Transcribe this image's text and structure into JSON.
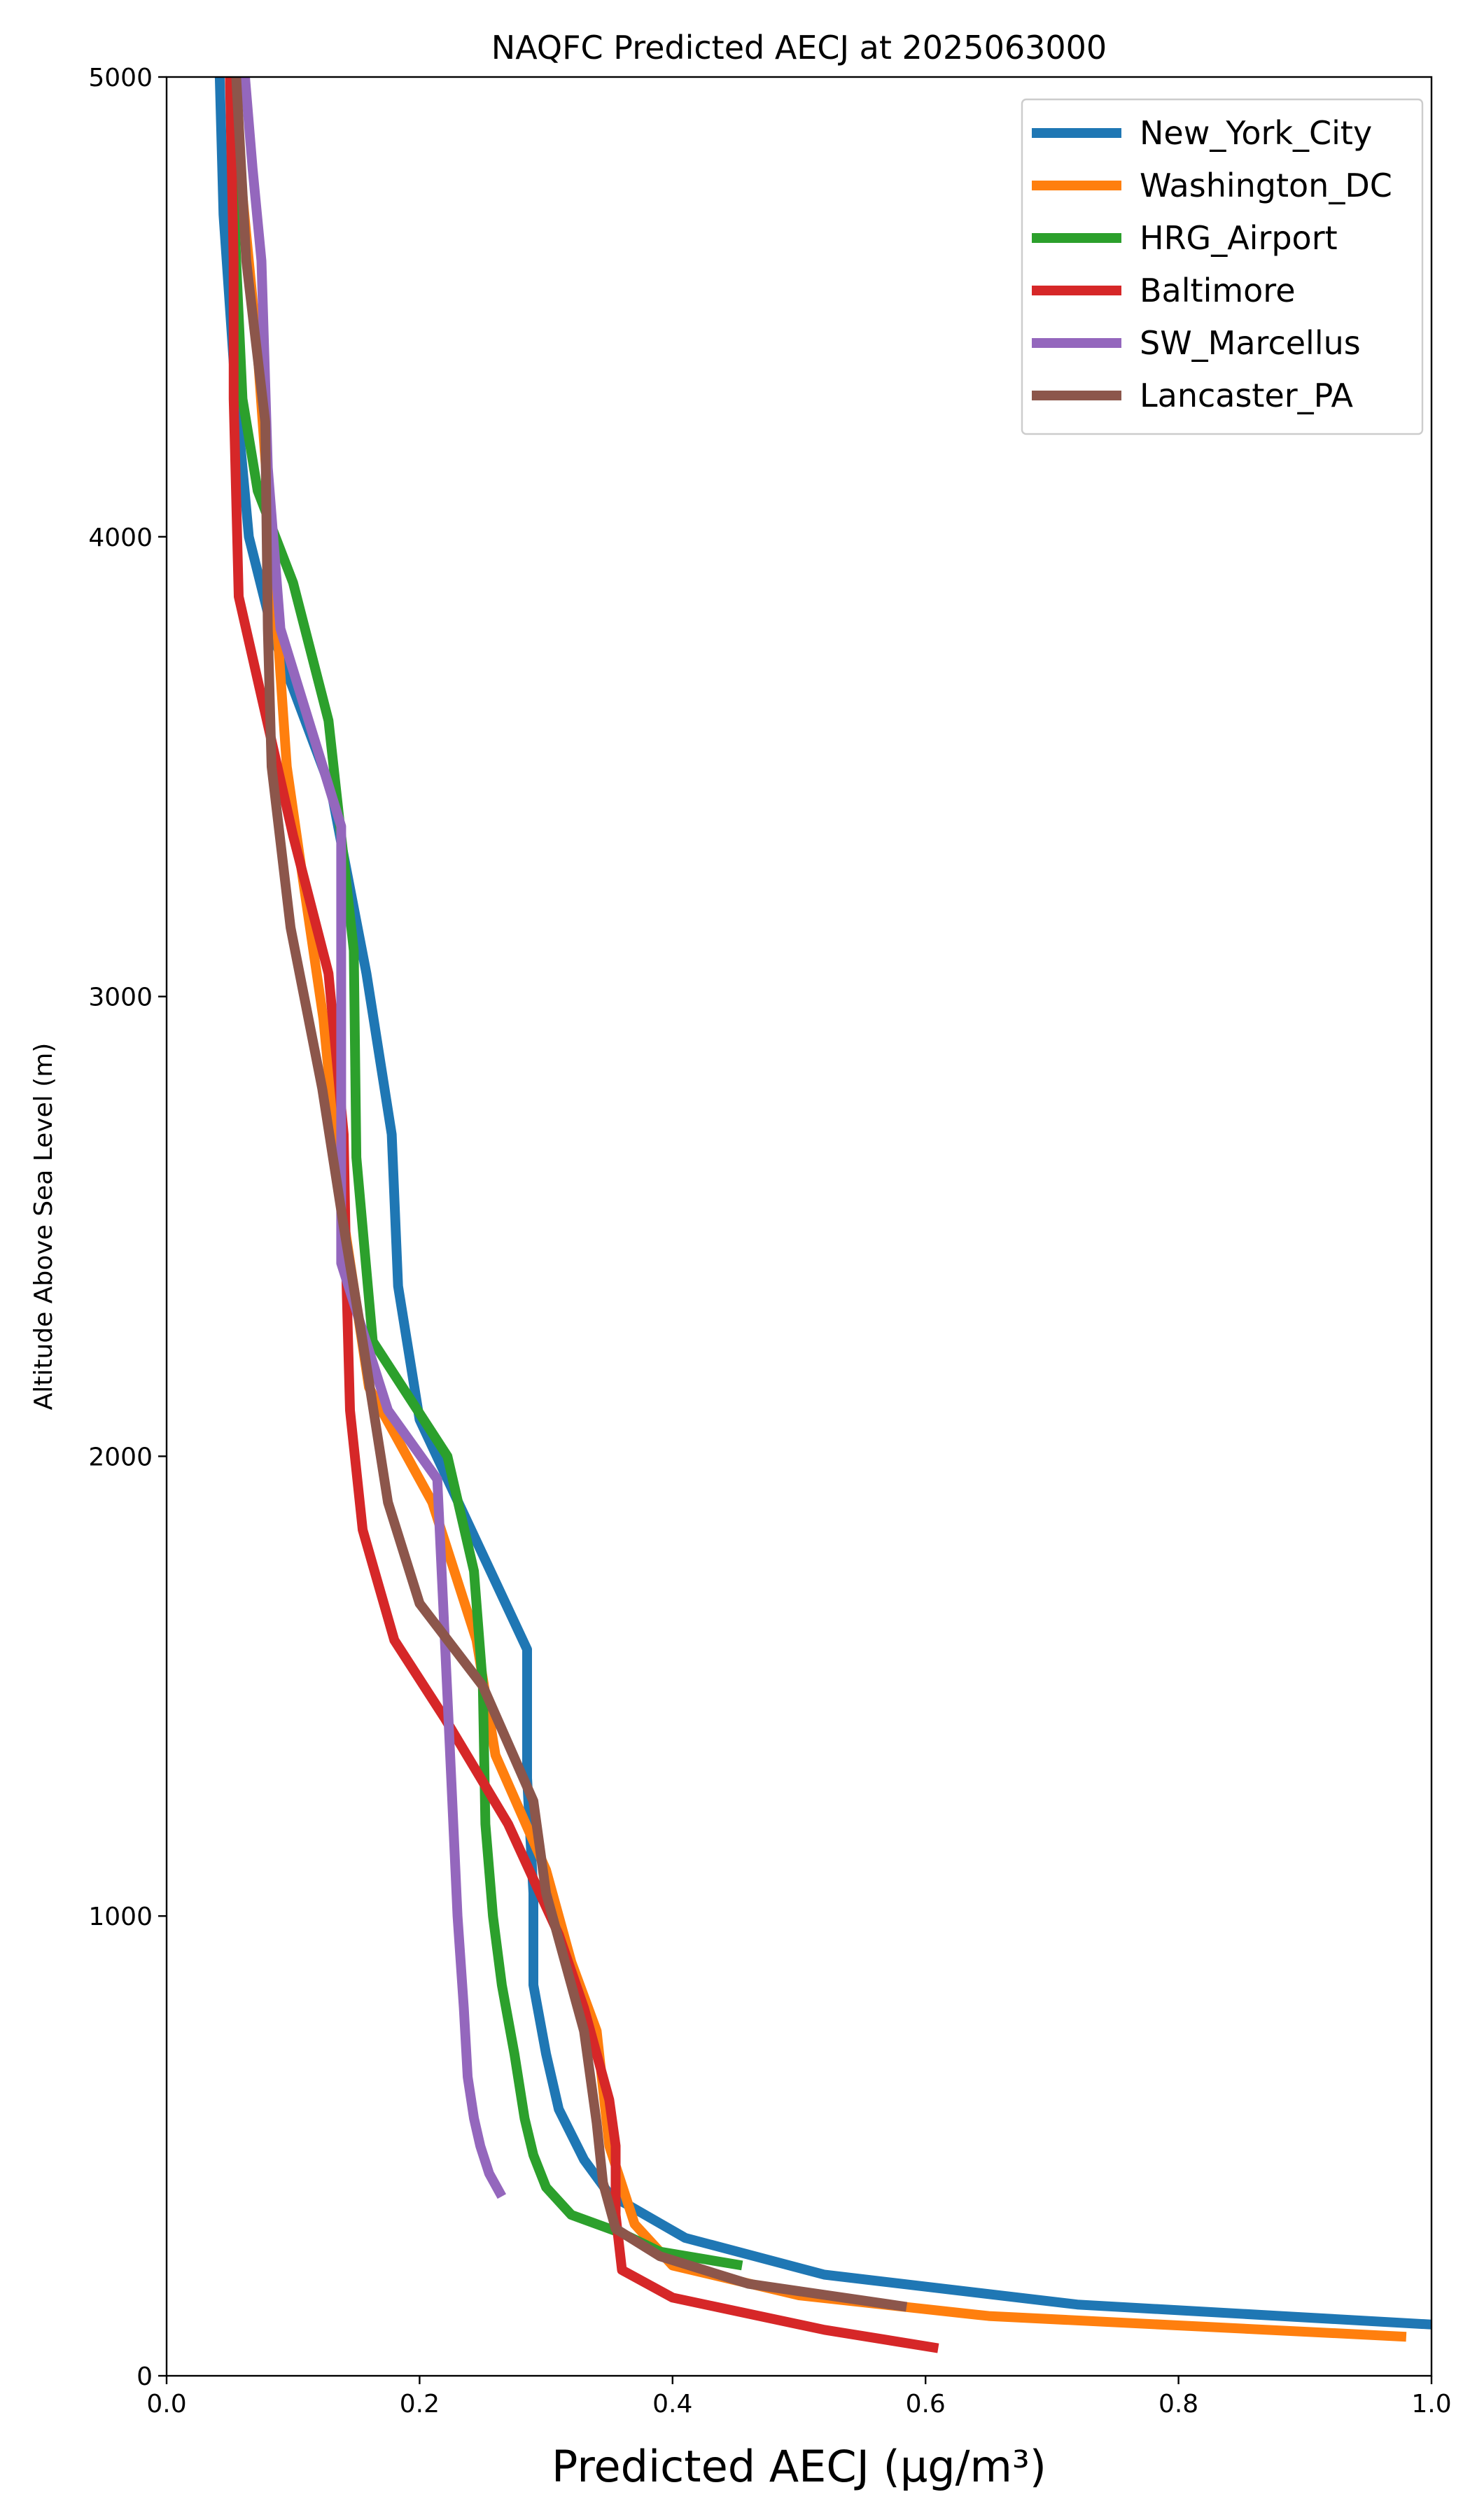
{
  "chart_data": {
    "type": "line",
    "title": "NAQFC Predicted AECJ at 2025063000",
    "xlabel": "Predicted AECJ (μg/m³)",
    "ylabel": "Altitude Above Sea Level (m)",
    "xlim": [
      0.0,
      1.0
    ],
    "ylim": [
      0,
      5000
    ],
    "xticks": [
      "0.0",
      "0.2",
      "0.4",
      "0.6",
      "0.8",
      "1.0"
    ],
    "yticks": [
      "0",
      "1000",
      "2000",
      "3000",
      "4000",
      "5000"
    ],
    "grid": false,
    "legend_position": "top-right",
    "series": [
      {
        "name": "New_York_City",
        "color": "#1f77b4",
        "points": [
          [
            1.01,
            110
          ],
          [
            0.72,
            155
          ],
          [
            0.52,
            220
          ],
          [
            0.41,
            300
          ],
          [
            0.35,
            395
          ],
          [
            0.33,
            470
          ],
          [
            0.31,
            580
          ],
          [
            0.3,
            700
          ],
          [
            0.29,
            850
          ],
          [
            0.29,
            1050
          ],
          [
            0.285,
            1300
          ],
          [
            0.285,
            1580
          ],
          [
            0.2,
            2080
          ],
          [
            0.183,
            2370
          ],
          [
            0.178,
            2700
          ],
          [
            0.158,
            3050
          ],
          [
            0.13,
            3450
          ],
          [
            0.085,
            3780
          ],
          [
            0.065,
            4000
          ],
          [
            0.055,
            4300
          ],
          [
            0.045,
            4700
          ],
          [
            0.042,
            5000
          ]
        ]
      },
      {
        "name": "Washington_DC",
        "color": "#ff7f0e",
        "points": [
          [
            0.98,
            85
          ],
          [
            0.65,
            130
          ],
          [
            0.5,
            175
          ],
          [
            0.4,
            240
          ],
          [
            0.37,
            330
          ],
          [
            0.35,
            500
          ],
          [
            0.34,
            750
          ],
          [
            0.32,
            900
          ],
          [
            0.3,
            1100
          ],
          [
            0.26,
            1350
          ],
          [
            0.245,
            1600
          ],
          [
            0.21,
            1900
          ],
          [
            0.16,
            2150
          ],
          [
            0.138,
            2550
          ],
          [
            0.124,
            2950
          ],
          [
            0.108,
            3250
          ],
          [
            0.095,
            3500
          ],
          [
            0.085,
            3900
          ],
          [
            0.072,
            4400
          ],
          [
            0.065,
            4600
          ],
          [
            0.058,
            4800
          ],
          [
            0.05,
            5000
          ]
        ]
      },
      {
        "name": "HRG_Airport",
        "color": "#2ca02c",
        "points": [
          [
            0.455,
            240
          ],
          [
            0.39,
            270
          ],
          [
            0.36,
            310
          ],
          [
            0.32,
            350
          ],
          [
            0.3,
            410
          ],
          [
            0.29,
            480
          ],
          [
            0.283,
            560
          ],
          [
            0.275,
            700
          ],
          [
            0.265,
            850
          ],
          [
            0.258,
            1000
          ],
          [
            0.252,
            1200
          ],
          [
            0.25,
            1500
          ],
          [
            0.243,
            1750
          ],
          [
            0.222,
            2000
          ],
          [
            0.163,
            2250
          ],
          [
            0.15,
            2650
          ],
          [
            0.148,
            3100
          ],
          [
            0.128,
            3600
          ],
          [
            0.1,
            3900
          ],
          [
            0.072,
            4100
          ],
          [
            0.06,
            4300
          ],
          [
            0.055,
            4600
          ],
          [
            0.05,
            5000
          ]
        ]
      },
      {
        "name": "Baltimore",
        "color": "#d62728",
        "points": [
          [
            0.61,
            60
          ],
          [
            0.52,
            100
          ],
          [
            0.4,
            170
          ],
          [
            0.36,
            230
          ],
          [
            0.355,
            350
          ],
          [
            0.355,
            500
          ],
          [
            0.35,
            600
          ],
          [
            0.33,
            800
          ],
          [
            0.31,
            960
          ],
          [
            0.27,
            1200
          ],
          [
            0.22,
            1430
          ],
          [
            0.18,
            1600
          ],
          [
            0.155,
            1840
          ],
          [
            0.145,
            2100
          ],
          [
            0.142,
            2400
          ],
          [
            0.14,
            2700
          ],
          [
            0.128,
            3050
          ],
          [
            0.1,
            3350
          ],
          [
            0.057,
            3870
          ],
          [
            0.053,
            4300
          ],
          [
            0.053,
            4600
          ],
          [
            0.05,
            5000
          ]
        ]
      },
      {
        "name": "SW_Marcellus",
        "color": "#9467bd",
        "points": [
          [
            0.265,
            390
          ],
          [
            0.255,
            440
          ],
          [
            0.248,
            500
          ],
          [
            0.243,
            560
          ],
          [
            0.238,
            650
          ],
          [
            0.235,
            800
          ],
          [
            0.23,
            1000
          ],
          [
            0.225,
            1300
          ],
          [
            0.22,
            1600
          ],
          [
            0.214,
            1950
          ],
          [
            0.175,
            2100
          ],
          [
            0.138,
            2420
          ],
          [
            0.138,
            3370
          ],
          [
            0.09,
            3800
          ],
          [
            0.08,
            4150
          ],
          [
            0.075,
            4600
          ],
          [
            0.068,
            4800
          ],
          [
            0.062,
            5000
          ]
        ]
      },
      {
        "name": "Lancaster_PA",
        "color": "#8c564b",
        "points": [
          [
            0.585,
            150
          ],
          [
            0.46,
            200
          ],
          [
            0.39,
            260
          ],
          [
            0.355,
            320
          ],
          [
            0.345,
            420
          ],
          [
            0.34,
            550
          ],
          [
            0.33,
            750
          ],
          [
            0.3,
            1050
          ],
          [
            0.29,
            1250
          ],
          [
            0.25,
            1500
          ],
          [
            0.2,
            1680
          ],
          [
            0.175,
            1900
          ],
          [
            0.155,
            2250
          ],
          [
            0.14,
            2500
          ],
          [
            0.123,
            2800
          ],
          [
            0.098,
            3150
          ],
          [
            0.083,
            3500
          ],
          [
            0.08,
            3800
          ],
          [
            0.078,
            4250
          ],
          [
            0.063,
            4600
          ],
          [
            0.055,
            5000
          ]
        ]
      }
    ]
  }
}
